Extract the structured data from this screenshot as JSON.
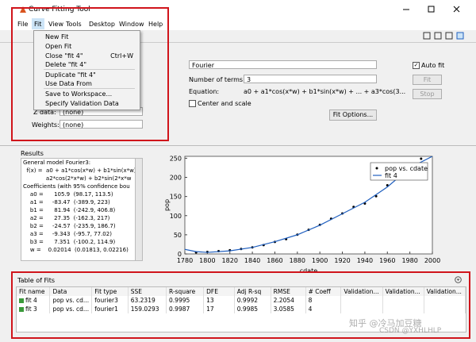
{
  "window": {
    "title": "Curve Fitting Tool"
  },
  "menu": [
    "File",
    "Fit",
    "View",
    "Tools",
    "Desktop",
    "Window",
    "Help"
  ],
  "fit_menu": [
    {
      "label": "New Fit"
    },
    {
      "label": "Open Fit"
    },
    {
      "label": "Close \"fit 4\"",
      "shortcut": "Ctrl+W"
    },
    {
      "label": "Delete \"fit 4\""
    },
    {
      "label": "Duplicate \"fit 4\""
    },
    {
      "label": "Use Data From"
    },
    {
      "label": "Save to Workspace..."
    },
    {
      "label": "Specify Validation Data"
    }
  ],
  "data_panel": {
    "z_label": "Z data:",
    "z_value": "(none)",
    "weights_label": "Weights:",
    "weights_value": "(none)"
  },
  "fit_panel": {
    "model": "Fourier",
    "terms_label": "Number of terms:",
    "terms_value": "3",
    "equation_label": "Equation:",
    "equation": "a0 + a1*cos(x*w) + b1*sin(x*w) + ... + a3*cos(3...",
    "center_scale": "Center and scale",
    "fit_options": "Fit Options..."
  },
  "controls": {
    "auto_fit": "Auto fit",
    "fit": "Fit",
    "stop": "Stop"
  },
  "results": {
    "title": "Results",
    "lines": [
      "General model Fourier3:",
      "  f(x) =  a0 + a1*cos(x*w) + b1*sin(x*w) +",
      "             a2*cos(2*x*w) + b2*sin(2*x*w",
      "Coefficients (with 95% confidence bou",
      "    a0 =      105.9  (98.17, 113.5)",
      "    a1 =     -83.47  (-389.9, 223)",
      "    b1 =      81.94  (-242.9, 406.8)",
      "    a2 =      27.35  (-162.3, 217)",
      "    b2 =     -24.57  (-235.9, 186.7)",
      "    a3 =     -9.343  (-95.7, 77.02)",
      "    b3 =      7.351  (-100.2, 114.9)",
      "    w =    0.02014  (0.01813, 0.02216)"
    ]
  },
  "chart_data": {
    "type": "line",
    "xlabel": "cdate",
    "ylabel": "pop",
    "xlim": [
      1780,
      2000
    ],
    "xticks": [
      1780,
      1800,
      1820,
      1840,
      1860,
      1880,
      1900,
      1920,
      1940,
      1960,
      1980,
      2000
    ],
    "ylim": [
      0,
      255
    ],
    "yticks": [
      0,
      50,
      100,
      150,
      200,
      250
    ],
    "legend": "upper-right",
    "series": [
      {
        "name": "pop vs. cdate",
        "color": "#000000",
        "style": "markers",
        "x": [
          1790,
          1800,
          1810,
          1820,
          1830,
          1840,
          1850,
          1860,
          1870,
          1880,
          1890,
          1900,
          1910,
          1920,
          1930,
          1940,
          1950,
          1960,
          1970,
          1980,
          1990
        ],
        "values": [
          3.9,
          5.3,
          7.2,
          9.6,
          12.9,
          17.1,
          23.1,
          31.4,
          38.6,
          50.2,
          62.9,
          76.0,
          92.0,
          105.7,
          122.8,
          131.7,
          150.7,
          179.3,
          203.2,
          226.5,
          248.7
        ]
      },
      {
        "name": "fit 4",
        "color": "#1f5fbf",
        "style": "line",
        "x": [
          1780,
          1790,
          1800,
          1820,
          1840,
          1860,
          1880,
          1900,
          1920,
          1940,
          1960,
          1980,
          2000
        ],
        "values": [
          12,
          6,
          4,
          8,
          17,
          32,
          50,
          75,
          105,
          135,
          175,
          225,
          255
        ]
      }
    ]
  },
  "table": {
    "title": "Table of Fits",
    "columns": [
      "Fit name",
      "Data",
      "Fit type",
      "SSE",
      "R-square",
      "DFE",
      "Adj R-sq",
      "RMSE",
      "# Coeff",
      "Validation...",
      "Validation...",
      "Validation..."
    ],
    "rows": [
      [
        "fit 4",
        "pop vs. cd...",
        "fourier3",
        "63.2319",
        "0.9995",
        "13",
        "0.9992",
        "2.2054",
        "8",
        "",
        "",
        ""
      ],
      [
        "fit 3",
        "pop vs. cd...",
        "fourier1",
        "159.0293",
        "0.9987",
        "17",
        "0.9985",
        "3.0585",
        "4",
        "",
        "",
        ""
      ]
    ]
  },
  "watermark": [
    "知乎 @冷马加豆糖",
    "CSDN @YXHLHLP"
  ]
}
